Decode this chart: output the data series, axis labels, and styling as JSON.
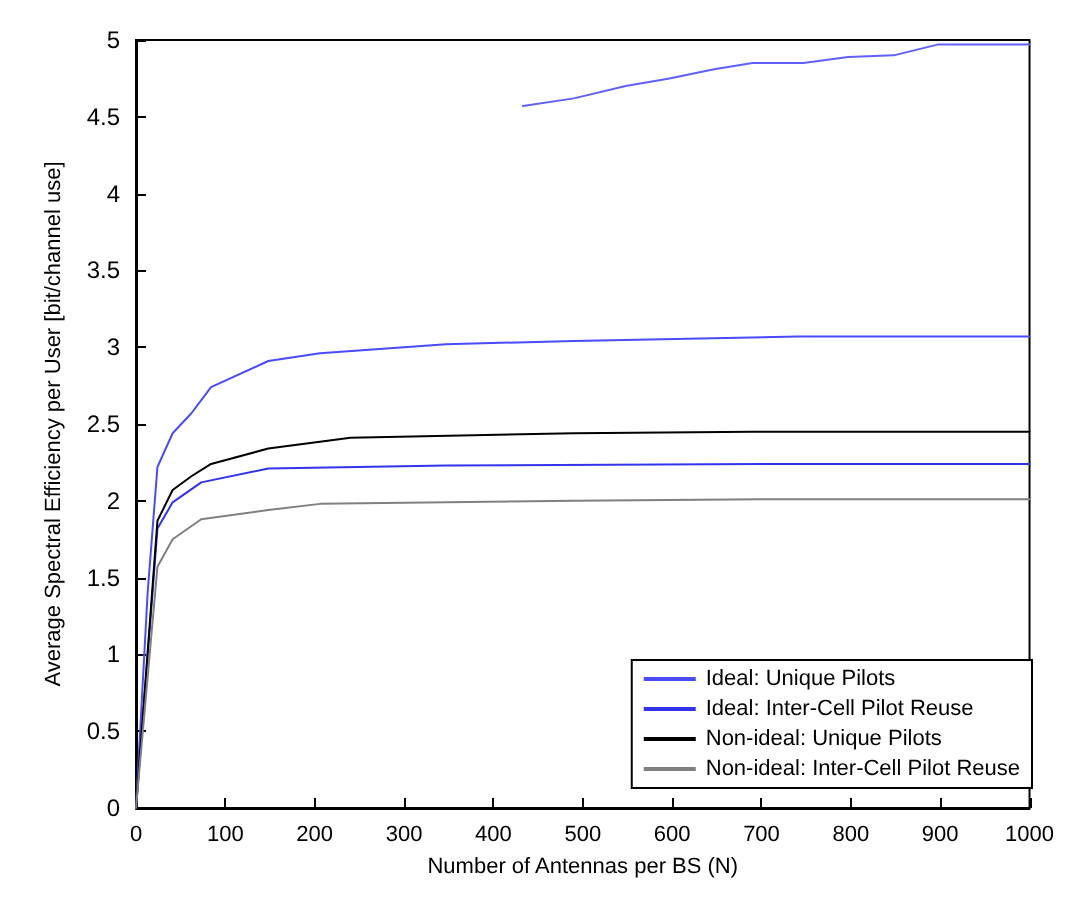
{
  "chart_data": {
    "type": "line",
    "xlabel": "Number of Antennas per BS (N)",
    "ylabel": "Average Spectral Efficiency per User [bit/channel use]",
    "xlim": [
      0,
      1000
    ],
    "ylim": [
      0,
      5
    ],
    "xticks": [
      0,
      100,
      200,
      300,
      400,
      500,
      600,
      700,
      800,
      900,
      1000
    ],
    "yticks": [
      0,
      0.5,
      1,
      1.5,
      2,
      2.5,
      3,
      3.5,
      4,
      4.5,
      5
    ],
    "grid": false,
    "legend": "bottom right",
    "marker": "none",
    "line_style": "solid",
    "series": [
      {
        "name": "Ideal: Unique Pilots",
        "color": "#4a4aff",
        "x": [
          0,
          13,
          24,
          41,
          62,
          84,
          148,
          206,
          347,
          490,
          741,
          1000
        ],
        "values": [
          0,
          1.4,
          2.22,
          2.44,
          2.57,
          2.74,
          2.91,
          2.96,
          3.02,
          3.04,
          3.07,
          3.07
        ]
      },
      {
        "name": "Ideal: Inter-Cell Pilot Reuse",
        "color": "#3333ee",
        "x": [
          0,
          24,
          41,
          73,
          148,
          347,
          700,
          1000
        ],
        "values": [
          0,
          1.82,
          1.99,
          2.12,
          2.21,
          2.23,
          2.24,
          2.24
        ]
      },
      {
        "name": "Non-ideal: Unique Pilots",
        "color": "#000000",
        "x": [
          0,
          24,
          41,
          62,
          84,
          148,
          240,
          490,
          690,
          1000
        ],
        "values": [
          0,
          1.87,
          2.07,
          2.16,
          2.24,
          2.34,
          2.41,
          2.44,
          2.45,
          2.45
        ]
      },
      {
        "name": "Non-ideal: Inter-Cell Pilot Reuse",
        "color": "#808080",
        "x": [
          0,
          24,
          41,
          73,
          148,
          206,
          490,
          700,
          1000
        ],
        "values": [
          0,
          1.57,
          1.75,
          1.88,
          1.94,
          1.98,
          2,
          2.01,
          2.01
        ]
      },
      {
        "color": "#6060ff",
        "x": [
          433,
          490,
          548,
          597,
          647,
          690,
          747,
          797,
          848,
          897,
          1000
        ],
        "values": [
          4.57,
          4.62,
          4.7,
          4.75,
          4.81,
          4.85,
          4.85,
          4.89,
          4.9,
          4.97,
          4.97
        ]
      }
    ]
  }
}
